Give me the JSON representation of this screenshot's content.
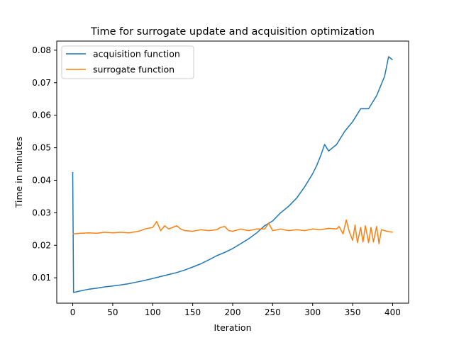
{
  "chart_data": {
    "type": "line",
    "title": "Time for surrogate update and acquisition optimization",
    "xlabel": "Iteration",
    "ylabel": "Time in minutes",
    "xlim": [
      -20,
      420
    ],
    "ylim": [
      0.0022,
      0.0828
    ],
    "xticks": [
      0,
      50,
      100,
      150,
      200,
      250,
      300,
      350,
      400
    ],
    "xtick_labels": [
      "0",
      "50",
      "100",
      "150",
      "200",
      "250",
      "300",
      "350",
      "400"
    ],
    "yticks": [
      0.01,
      0.02,
      0.03,
      0.04,
      0.05,
      0.06,
      0.07,
      0.08
    ],
    "ytick_labels": [
      "0.01",
      "0.02",
      "0.03",
      "0.04",
      "0.05",
      "0.06",
      "0.07",
      "0.08"
    ],
    "grid": false,
    "legend_position": "top-left",
    "series": [
      {
        "name": "acquisition function",
        "color": "#1f77b4",
        "x": [
          0,
          1,
          10,
          20,
          30,
          40,
          50,
          60,
          70,
          80,
          90,
          100,
          110,
          120,
          130,
          140,
          150,
          160,
          170,
          180,
          190,
          200,
          210,
          220,
          230,
          240,
          250,
          260,
          270,
          280,
          290,
          300,
          305,
          310,
          315,
          320,
          330,
          340,
          350,
          360,
          370,
          380,
          390,
          395,
          400
        ],
        "y": [
          0.0425,
          0.0055,
          0.006,
          0.0065,
          0.0068,
          0.0072,
          0.0075,
          0.0078,
          0.0082,
          0.0087,
          0.0092,
          0.0098,
          0.0104,
          0.011,
          0.0116,
          0.0124,
          0.0133,
          0.0143,
          0.0155,
          0.0168,
          0.0178,
          0.019,
          0.0205,
          0.022,
          0.0238,
          0.026,
          0.0275,
          0.03,
          0.032,
          0.0345,
          0.038,
          0.042,
          0.0445,
          0.0475,
          0.051,
          0.049,
          0.051,
          0.055,
          0.058,
          0.062,
          0.062,
          0.066,
          0.072,
          0.078,
          0.077
        ]
      },
      {
        "name": "surrogate function",
        "color": "#ff7f0e",
        "x": [
          0,
          10,
          20,
          30,
          40,
          50,
          60,
          70,
          80,
          85,
          90,
          100,
          105,
          110,
          115,
          120,
          125,
          130,
          135,
          140,
          150,
          160,
          170,
          180,
          185,
          190,
          195,
          200,
          210,
          220,
          230,
          240,
          245,
          250,
          260,
          270,
          280,
          290,
          300,
          310,
          320,
          330,
          333,
          338,
          342,
          346,
          350,
          353,
          356,
          360,
          363,
          366,
          370,
          373,
          376,
          380,
          383,
          386,
          390,
          395,
          400
        ],
        "y": [
          0.0235,
          0.0237,
          0.0238,
          0.0237,
          0.024,
          0.0238,
          0.024,
          0.0238,
          0.0242,
          0.0245,
          0.025,
          0.0255,
          0.0273,
          0.0245,
          0.026,
          0.025,
          0.0255,
          0.026,
          0.025,
          0.0245,
          0.0243,
          0.0248,
          0.0245,
          0.0248,
          0.0255,
          0.0258,
          0.0245,
          0.0243,
          0.025,
          0.0245,
          0.025,
          0.025,
          0.0268,
          0.0245,
          0.025,
          0.0245,
          0.0248,
          0.0245,
          0.025,
          0.0248,
          0.0252,
          0.025,
          0.0258,
          0.0235,
          0.0278,
          0.024,
          0.0215,
          0.0262,
          0.0208,
          0.0255,
          0.021,
          0.026,
          0.0208,
          0.0255,
          0.021,
          0.0258,
          0.0205,
          0.0248,
          0.0245,
          0.0242,
          0.024
        ]
      }
    ]
  }
}
